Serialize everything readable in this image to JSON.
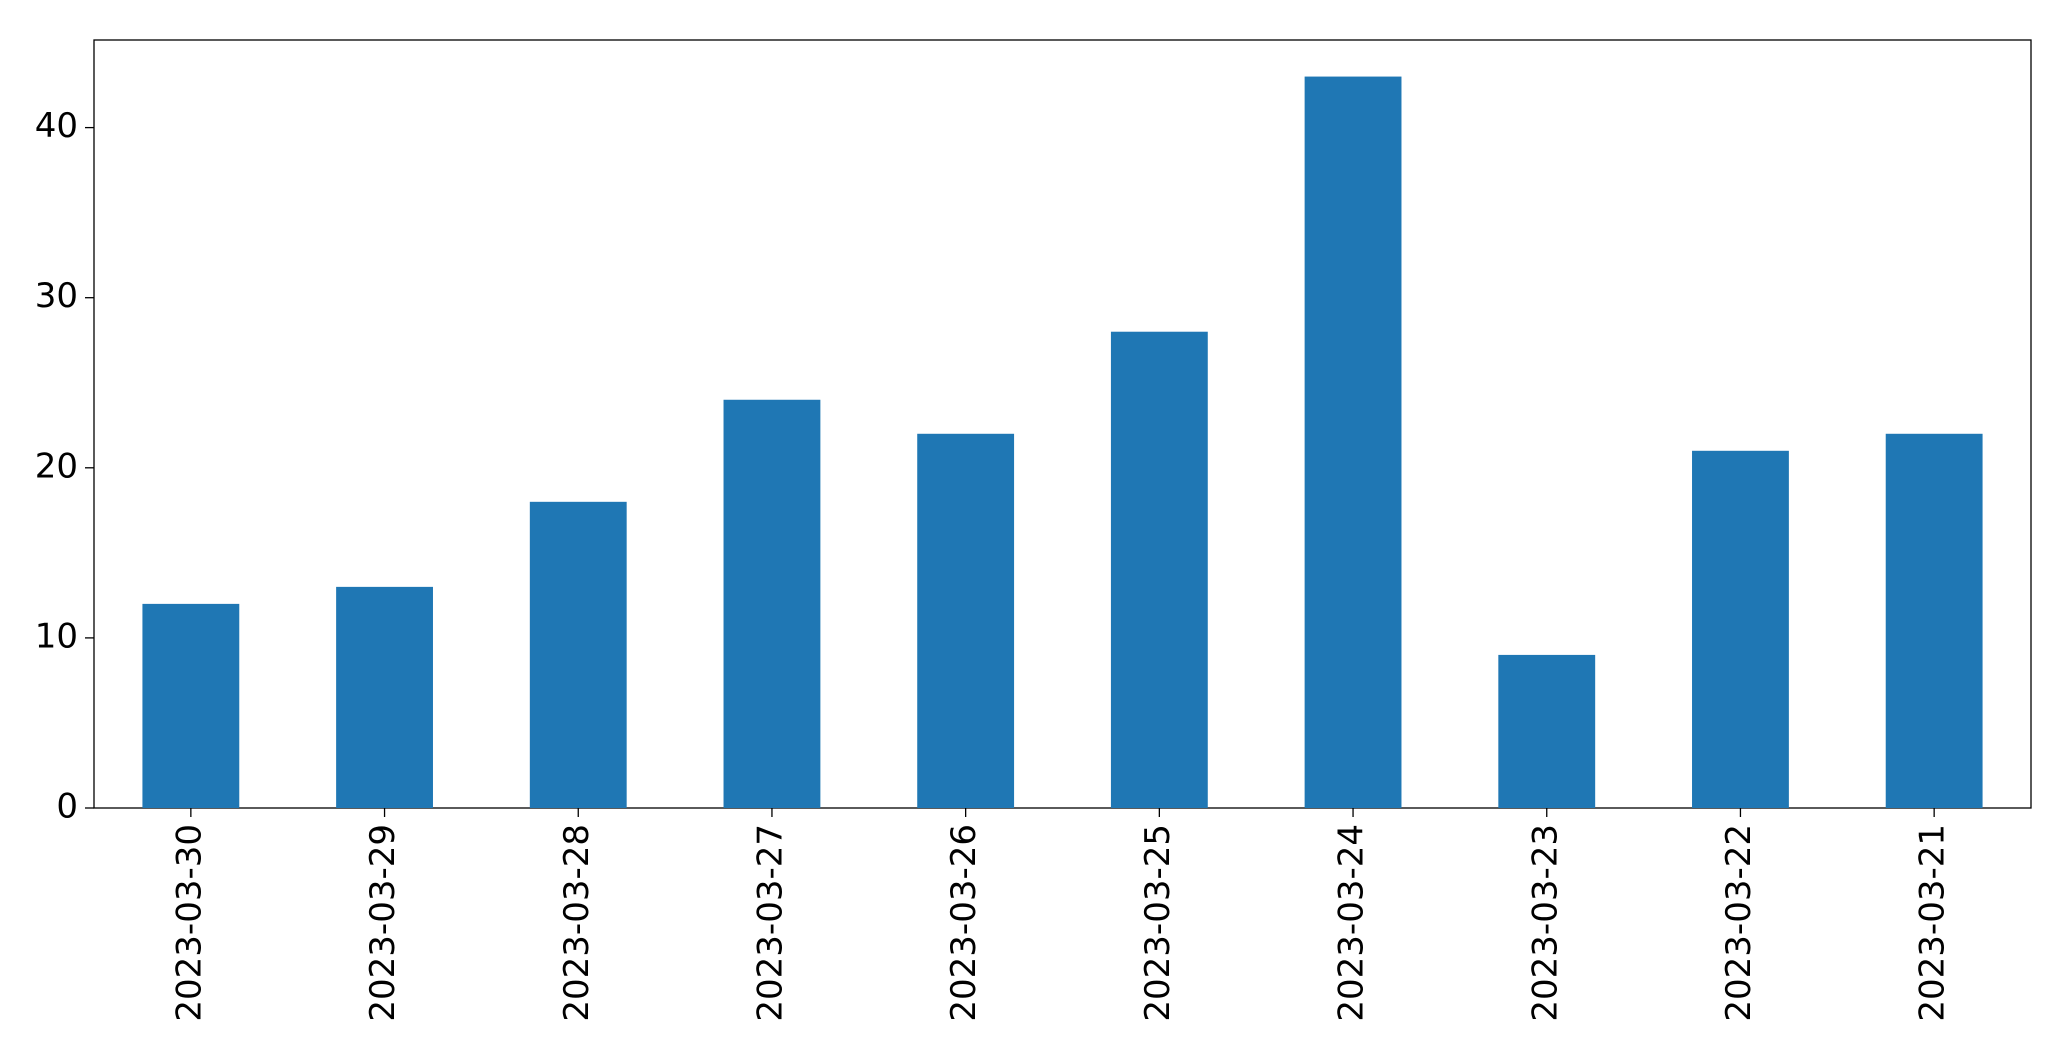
{
  "chart_data": {
    "type": "bar",
    "categories": [
      "2023-03-30",
      "2023-03-29",
      "2023-03-28",
      "2023-03-27",
      "2023-03-26",
      "2023-03-25",
      "2023-03-24",
      "2023-03-23",
      "2023-03-22",
      "2023-03-21"
    ],
    "values": [
      12,
      13,
      18,
      24,
      22,
      28,
      43,
      9,
      21,
      22
    ],
    "color": "#1f77b4",
    "ylim": [
      0,
      45.15
    ],
    "yticks": [
      0,
      10,
      20,
      30,
      40
    ],
    "grid": false
  }
}
